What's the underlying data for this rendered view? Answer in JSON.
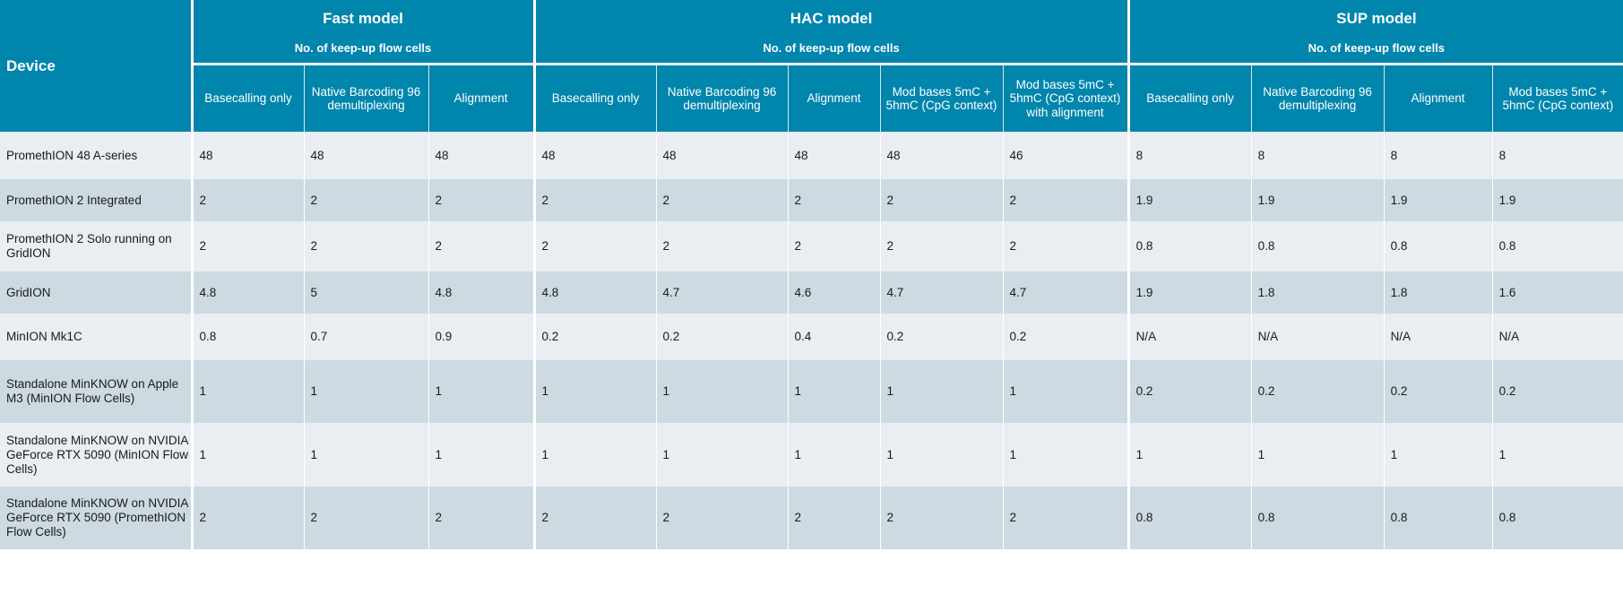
{
  "table": {
    "device_header": "Device",
    "groups": [
      {
        "title": "Fast model",
        "subtitle": "No. of keep-up flow cells"
      },
      {
        "title": "HAC model",
        "subtitle": "No. of keep-up flow cells"
      },
      {
        "title": "SUP model",
        "subtitle": "No. of keep-up flow cells"
      }
    ],
    "columns": [
      "Basecalling only",
      "Native Barcoding 96 demultiplexing",
      "Alignment",
      "Basecalling only",
      "Native Barcoding 96 demultiplexing",
      "Alignment",
      "Mod bases 5mC + 5hmC (CpG context)",
      "Mod bases 5mC + 5hmC (CpG context) with alignment",
      "Basecalling only",
      "Native Barcoding 96 demultiplexing",
      "Alignment",
      "Mod bases 5mC + 5hmC (CpG context)"
    ],
    "rows": [
      {
        "device": "PromethION 48 A-series",
        "values": [
          "48",
          "48",
          "48",
          "48",
          "48",
          "48",
          "48",
          "46",
          "8",
          "8",
          "8",
          "8"
        ]
      },
      {
        "device": "PromethION 2 Integrated",
        "values": [
          "2",
          "2",
          "2",
          "2",
          "2",
          "2",
          "2",
          "2",
          "1.9",
          "1.9",
          "1.9",
          "1.9"
        ]
      },
      {
        "device": "PromethION 2 Solo running on GridION",
        "values": [
          "2",
          "2",
          "2",
          "2",
          "2",
          "2",
          "2",
          "2",
          "0.8",
          "0.8",
          "0.8",
          "0.8"
        ]
      },
      {
        "device": "GridION",
        "values": [
          "4.8",
          "5",
          "4.8",
          "4.8",
          "4.7",
          "4.6",
          "4.7",
          "4.7",
          "1.9",
          "1.8",
          "1.8",
          "1.6"
        ]
      },
      {
        "device": "MinION Mk1C",
        "values": [
          "0.8",
          "0.7",
          "0.9",
          "0.2",
          "0.2",
          "0.4",
          "0.2",
          "0.2",
          "N/A",
          "N/A",
          "N/A",
          "N/A"
        ]
      },
      {
        "device": "Standalone MinKNOW on Apple M3 (MinION Flow Cells)",
        "values": [
          "1",
          "1",
          "1",
          "1",
          "1",
          "1",
          "1",
          "1",
          "0.2",
          "0.2",
          "0.2",
          "0.2"
        ]
      },
      {
        "device": "Standalone MinKNOW on NVIDIA GeForce RTX 5090 (MinION Flow Cells)",
        "values": [
          "1",
          "1",
          "1",
          "1",
          "1",
          "1",
          "1",
          "1",
          "1",
          "1",
          "1",
          "1"
        ]
      },
      {
        "device": "Standalone MinKNOW on NVIDIA GeForce RTX 5090 (PromethION Flow Cells)",
        "values": [
          "2",
          "2",
          "2",
          "2",
          "2",
          "2",
          "2",
          "2",
          "0.8",
          "0.8",
          "0.8",
          "0.8"
        ]
      }
    ]
  }
}
